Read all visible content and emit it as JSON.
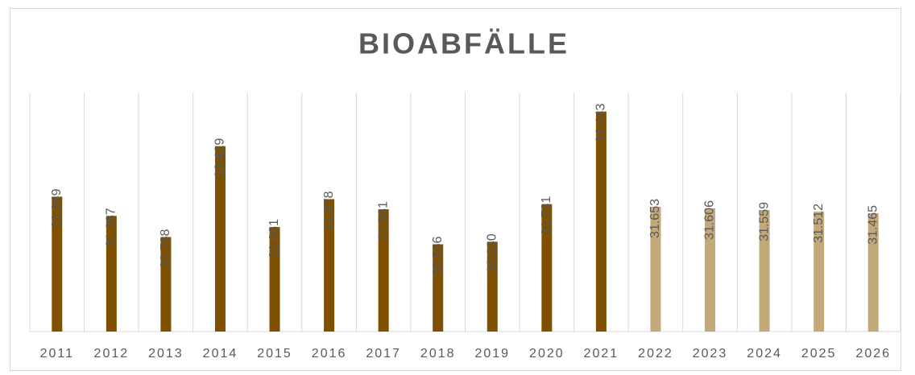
{
  "chart_data": {
    "type": "bar",
    "title": "BIOABFÄLLE",
    "categories": [
      "2011",
      "2012",
      "2013",
      "2014",
      "2015",
      "2016",
      "2017",
      "2018",
      "2019",
      "2020",
      "2021",
      "2022",
      "2023",
      "2024",
      "2025",
      "2026"
    ],
    "values": [
      31949,
      31387,
      30768,
      33429,
      31061,
      31878,
      31581,
      30556,
      30630,
      31731,
      34443,
      31653,
      31606,
      31559,
      31512,
      31465
    ],
    "value_labels": [
      "31.949",
      "31.387",
      "30.768",
      "33.429",
      "31.061",
      "31.878",
      "31.581",
      "30.556",
      "30.630",
      "31.731",
      "34.443",
      "31.653",
      "31.606",
      "31.559",
      "31.512",
      "31.465"
    ],
    "colors": [
      "#7f5000",
      "#7f5000",
      "#7f5000",
      "#7f5000",
      "#7f5000",
      "#7f5000",
      "#7f5000",
      "#7f5000",
      "#7f5000",
      "#7f5000",
      "#7f5000",
      "#c3a97a",
      "#c3a97a",
      "#c3a97a",
      "#c3a97a",
      "#c3a97a"
    ],
    "ylim": [
      28000,
      35000
    ]
  }
}
